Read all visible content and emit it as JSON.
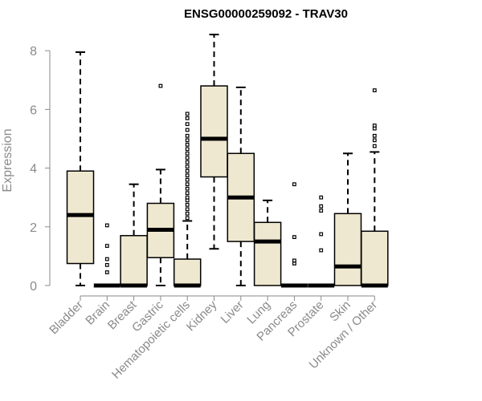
{
  "chart_data": {
    "type": "boxplot",
    "title": "ENSG00000259092 - TRAV30",
    "xlabel": "",
    "ylabel": "Expression",
    "ylim": [
      0,
      8.5
    ],
    "yticks": [
      0,
      2,
      4,
      6,
      8
    ],
    "box_fill": "#efe8d0",
    "axis_color": "#8a8a8a",
    "categories": [
      "Bladder",
      "Brain",
      "Breast",
      "Gastric",
      "Hematopoietic cells",
      "Kidney",
      "Liver",
      "Lung",
      "Pancreas",
      "Prostate",
      "Skin",
      "Unknown / Other"
    ],
    "series": [
      {
        "name": "Bladder",
        "min": 0,
        "q1": 0.75,
        "median": 2.4,
        "q3": 3.9,
        "max": 7.95,
        "outliers": []
      },
      {
        "name": "Brain",
        "min": 0,
        "q1": 0,
        "median": 0,
        "q3": 0,
        "max": 0,
        "outliers": [
          0.45,
          0.7,
          0.9,
          1.35,
          2.05
        ]
      },
      {
        "name": "Breast",
        "min": 0,
        "q1": 0,
        "median": 0,
        "q3": 1.7,
        "max": 3.45,
        "outliers": []
      },
      {
        "name": "Gastric",
        "min": 0,
        "q1": 0.95,
        "median": 1.9,
        "q3": 2.8,
        "max": 3.95,
        "outliers": [
          6.8
        ]
      },
      {
        "name": "Hematopoietic cells",
        "min": 0,
        "q1": 0,
        "median": 0,
        "q3": 0.9,
        "max": 2.2,
        "outliers": [
          2.3,
          2.45,
          2.6,
          2.75,
          2.9,
          3.0,
          3.15,
          3.3,
          3.45,
          3.6,
          3.75,
          3.9,
          4.05,
          4.2,
          4.35,
          4.5,
          4.65,
          4.8,
          4.95,
          5.1,
          5.3,
          5.5,
          5.7,
          5.85
        ]
      },
      {
        "name": "Kidney",
        "min": 1.25,
        "q1": 3.7,
        "median": 5.0,
        "q3": 6.8,
        "max": 8.55,
        "outliers": []
      },
      {
        "name": "Liver",
        "min": 0,
        "q1": 1.5,
        "median": 3.0,
        "q3": 4.5,
        "max": 6.75,
        "outliers": []
      },
      {
        "name": "Lung",
        "min": 0,
        "q1": 0,
        "median": 1.5,
        "q3": 2.15,
        "max": 2.9,
        "outliers": []
      },
      {
        "name": "Pancreas",
        "min": 0,
        "q1": 0,
        "median": 0,
        "q3": 0,
        "max": 0,
        "outliers": [
          0.75,
          0.85,
          1.65,
          3.45
        ]
      },
      {
        "name": "Prostate",
        "min": 0,
        "q1": 0,
        "median": 0,
        "q3": 0,
        "max": 0,
        "outliers": [
          1.2,
          1.75,
          2.55,
          2.7,
          3.0
        ]
      },
      {
        "name": "Skin",
        "min": 0,
        "q1": 0,
        "median": 0.65,
        "q3": 2.45,
        "max": 4.5,
        "outliers": []
      },
      {
        "name": "Unknown / Other",
        "min": 0,
        "q1": 0,
        "median": 0,
        "q3": 1.85,
        "max": 4.55,
        "outliers": [
          4.75,
          4.95,
          5.1,
          5.35,
          5.45,
          6.65
        ]
      }
    ]
  }
}
